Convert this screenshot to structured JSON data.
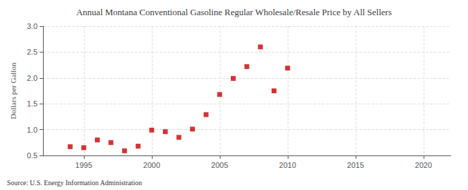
{
  "chart_data": {
    "type": "scatter",
    "title": "Annual Montana Conventional Gasoline Regular Wholesale/Resale Price by All Sellers",
    "y_label": "Dollars per Gallon",
    "annotations": [
      "Source: U.S. Energy Information Administration"
    ],
    "x": [
      1994,
      1995,
      1996,
      1997,
      1998,
      1999,
      2000,
      2001,
      2002,
      2003,
      2004,
      2005,
      2006,
      2007,
      2008,
      2009,
      2010
    ],
    "values": [
      0.67,
      0.65,
      0.8,
      0.75,
      0.59,
      0.68,
      0.99,
      0.96,
      0.85,
      1.01,
      1.29,
      1.68,
      1.99,
      2.22,
      2.6,
      1.75,
      2.19
    ],
    "color": "#cc0000",
    "marker": "square",
    "xlim": [
      1992,
      2022
    ],
    "xticks": [
      1995,
      2000,
      2005,
      2010,
      2015,
      2020
    ],
    "ylim": [
      0.5,
      3.0
    ],
    "yticks": [
      0.5,
      {
        "value": 1.0,
        "label": "1.0"
      },
      1.5,
      {
        "value": 2.0,
        "label": "2.0"
      },
      2.5,
      {
        "value": 3.0,
        "label": "3.0"
      }
    ],
    "grid": true
  }
}
